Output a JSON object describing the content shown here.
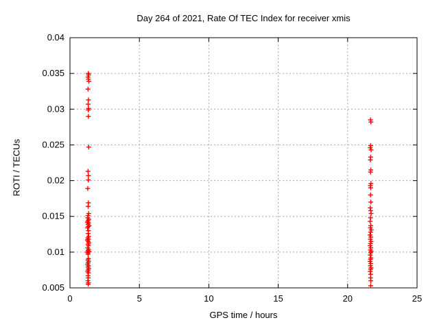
{
  "chart": {
    "title": "Day 264 of 2021, Rate Of TEC Index for receiver xmis",
    "xlabel": "GPS time / hours",
    "ylabel": "ROTI / TECUs"
  },
  "chart_data": {
    "type": "scatter",
    "title": "Day 264 of 2021, Rate Of TEC Index for receiver xmis",
    "xlabel": "GPS time / hours",
    "ylabel": "ROTI / TECUs",
    "xlim": [
      0,
      25
    ],
    "ylim": [
      0.005,
      0.04
    ],
    "x_ticks": [
      "0",
      "5",
      "10",
      "15",
      "20",
      "25"
    ],
    "y_ticks": [
      "0.005",
      "0.01",
      "0.015",
      "0.02",
      "0.025",
      "0.03",
      "0.035",
      "0.04"
    ],
    "grid": true,
    "grid_style": "dashed",
    "legend": "none",
    "marker": "plus",
    "colors": {
      "marker": "#ff0000",
      "grid": "#a6a6a6",
      "axis": "#000000",
      "background": "#ffffff"
    },
    "series": [
      {
        "name": "ROTI",
        "color": "#ff0000",
        "points": [
          [
            1.32,
            0.035
          ],
          [
            1.35,
            0.0348
          ],
          [
            1.3,
            0.0345
          ],
          [
            1.33,
            0.0342
          ],
          [
            1.36,
            0.0339
          ],
          [
            1.3,
            0.0328
          ],
          [
            1.33,
            0.0313
          ],
          [
            1.31,
            0.0307
          ],
          [
            1.34,
            0.0301
          ],
          [
            1.32,
            0.0299
          ],
          [
            1.33,
            0.029
          ],
          [
            1.35,
            0.0247
          ],
          [
            1.3,
            0.0213
          ],
          [
            1.33,
            0.0207
          ],
          [
            1.32,
            0.0201
          ],
          [
            1.28,
            0.0189
          ],
          [
            1.33,
            0.0169
          ],
          [
            1.31,
            0.0164
          ],
          [
            1.35,
            0.0154
          ],
          [
            1.3,
            0.0151
          ],
          [
            1.28,
            0.0148
          ],
          [
            1.36,
            0.0146
          ],
          [
            1.31,
            0.0144
          ],
          [
            1.25,
            0.0142
          ],
          [
            1.34,
            0.0141
          ],
          [
            1.3,
            0.0139
          ],
          [
            1.38,
            0.0137
          ],
          [
            1.32,
            0.0136
          ],
          [
            1.27,
            0.0134
          ],
          [
            1.33,
            0.013
          ],
          [
            1.31,
            0.0126
          ],
          [
            1.35,
            0.0122
          ],
          [
            1.29,
            0.012
          ],
          [
            1.33,
            0.0118
          ],
          [
            1.26,
            0.0117
          ],
          [
            1.31,
            0.0115
          ],
          [
            1.36,
            0.0113
          ],
          [
            1.3,
            0.0111
          ],
          [
            1.33,
            0.0109
          ],
          [
            1.28,
            0.0106
          ],
          [
            1.34,
            0.0104
          ],
          [
            1.3,
            0.0102
          ],
          [
            1.37,
            0.0101
          ],
          [
            1.25,
            0.01
          ],
          [
            1.32,
            0.0099
          ],
          [
            1.3,
            0.0097
          ],
          [
            1.33,
            0.0091
          ],
          [
            1.29,
            0.0089
          ],
          [
            1.34,
            0.0087
          ],
          [
            1.31,
            0.0085
          ],
          [
            1.27,
            0.0083
          ],
          [
            1.33,
            0.0081
          ],
          [
            1.3,
            0.0079
          ],
          [
            1.35,
            0.0077
          ],
          [
            1.31,
            0.0075
          ],
          [
            1.28,
            0.0073
          ],
          [
            1.33,
            0.0071
          ],
          [
            1.3,
            0.0067
          ],
          [
            1.32,
            0.0064
          ],
          [
            1.29,
            0.006
          ],
          [
            1.33,
            0.0057
          ],
          [
            1.31,
            0.0055
          ],
          [
            21.65,
            0.0285
          ],
          [
            21.68,
            0.0282
          ],
          [
            21.66,
            0.0249
          ],
          [
            21.63,
            0.0246
          ],
          [
            21.69,
            0.0243
          ],
          [
            21.66,
            0.0233
          ],
          [
            21.64,
            0.0229
          ],
          [
            21.67,
            0.0215
          ],
          [
            21.65,
            0.0212
          ],
          [
            21.68,
            0.0196
          ],
          [
            21.64,
            0.0193
          ],
          [
            21.66,
            0.019
          ],
          [
            21.65,
            0.018
          ],
          [
            21.67,
            0.017
          ],
          [
            21.63,
            0.0162
          ],
          [
            21.66,
            0.0158
          ],
          [
            21.69,
            0.0154
          ],
          [
            21.65,
            0.0148
          ],
          [
            21.62,
            0.0143
          ],
          [
            21.67,
            0.0137
          ],
          [
            21.64,
            0.0134
          ],
          [
            21.7,
            0.0131
          ],
          [
            21.66,
            0.0128
          ],
          [
            21.61,
            0.0124
          ],
          [
            21.67,
            0.0121
          ],
          [
            21.64,
            0.0118
          ],
          [
            21.69,
            0.0115
          ],
          [
            21.65,
            0.0112
          ],
          [
            21.62,
            0.0109
          ],
          [
            21.67,
            0.0106
          ],
          [
            21.64,
            0.0103
          ],
          [
            21.7,
            0.0101
          ],
          [
            21.66,
            0.0099
          ],
          [
            21.63,
            0.0096
          ],
          [
            21.68,
            0.0092
          ],
          [
            21.65,
            0.009
          ],
          [
            21.61,
            0.0087
          ],
          [
            21.67,
            0.0084
          ],
          [
            21.64,
            0.0081
          ],
          [
            21.69,
            0.0078
          ],
          [
            21.66,
            0.0076
          ],
          [
            21.63,
            0.0073
          ],
          [
            21.66,
            0.0069
          ],
          [
            21.65,
            0.0064
          ],
          [
            21.67,
            0.006
          ],
          [
            21.66,
            0.0053
          ]
        ]
      }
    ]
  }
}
